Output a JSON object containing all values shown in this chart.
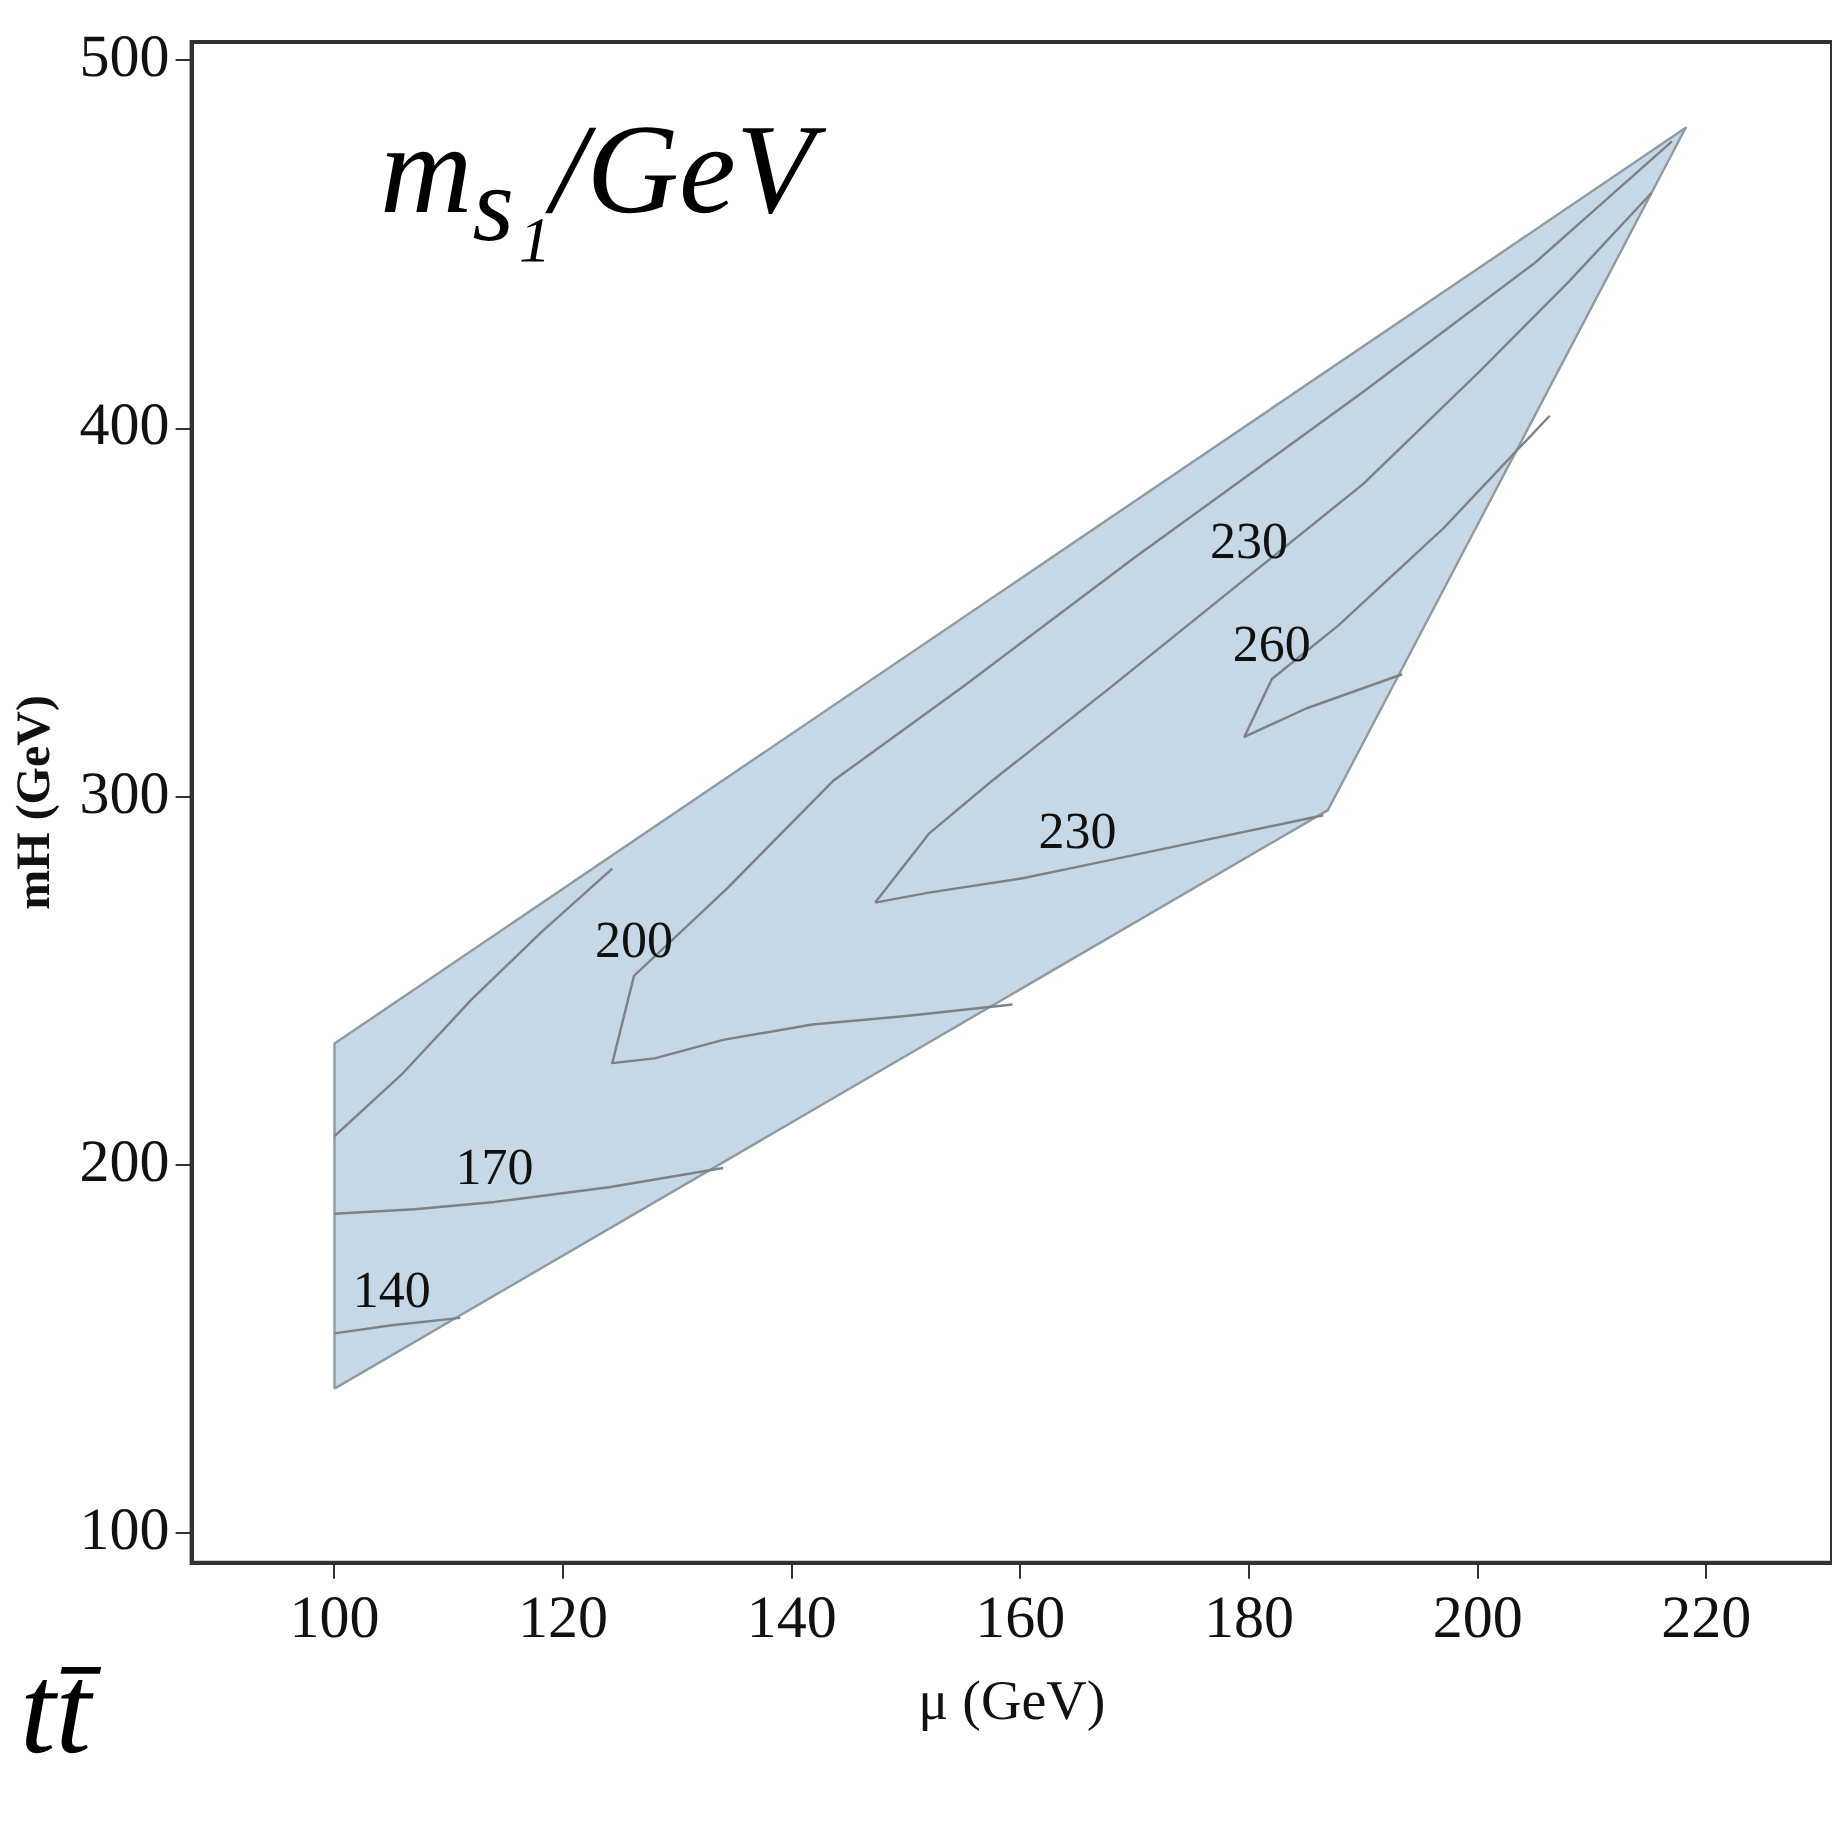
{
  "chart_data": {
    "type": "line",
    "xlabel": "μ (GeV)",
    "ylabel": "mH (GeV)",
    "xlim": [
      87.5,
      231
    ],
    "ylim": [
      92,
      505
    ],
    "xticks": [
      100,
      120,
      140,
      160,
      180,
      200,
      220
    ],
    "yticks": [
      100,
      200,
      300,
      400,
      500
    ],
    "annotations": [
      "m$_{s₁}$/GeV",
      "tt̄"
    ],
    "series": [
      {
        "type": "area",
        "color": "#c6d8e6",
        "x": [
          100,
          100,
          218.2,
          186.9,
          100
        ],
        "values": [
          139.3,
          233,
          481.7,
          296.4,
          139.3
        ]
      },
      {
        "name": "140",
        "color": "#7d8288",
        "x": [
          100,
          105,
          111
        ],
        "values": [
          154.3,
          156.5,
          158.5
        ]
      },
      {
        "name": "170",
        "color": "#7d8288",
        "x": [
          100,
          107,
          114,
          124,
          134
        ],
        "values": [
          186.8,
          188,
          190,
          194,
          199.2
        ]
      },
      {
        "color": "#7d8288",
        "x": [
          100,
          106,
          112,
          118,
          124.3
        ],
        "values": [
          207.9,
          225,
          245,
          263,
          280.5
        ]
      },
      {
        "name": "200",
        "color": "#7d8288",
        "x": [
          159.3,
          150,
          141.8,
          134,
          128,
          124.3,
          126.2,
          134.4,
          143.6,
          155,
          170,
          190,
          205,
          217
        ],
        "values": [
          243.6,
          240.5,
          238.2,
          234,
          229,
          227.7,
          251.4,
          275.3,
          304.3,
          330,
          365,
          410,
          445,
          478
        ]
      },
      {
        "name": "230",
        "color": "#7d8288",
        "x": [
          186.5,
          175,
          165,
          160.2,
          152,
          147.3
        ],
        "values": [
          295,
          287.5,
          281,
          277.9,
          274,
          271.3
        ]
      },
      {
        "name": "230",
        "color": "#7d8288",
        "x": [
          147.3,
          152,
          157.5,
          168,
          180,
          190,
          200,
          208,
          215.2
        ],
        "values": [
          271.3,
          290,
          304.3,
          330,
          360,
          385,
          415,
          440,
          464
        ]
      },
      {
        "name": "260",
        "color": "#7d8288",
        "x": [
          193.4,
          185,
          179.6,
          182,
          187.8,
          197,
          206.3
        ],
        "values": [
          333.3,
          324,
          316.3,
          332,
          346.5,
          372.9,
          403.5
        ]
      }
    ]
  }
}
